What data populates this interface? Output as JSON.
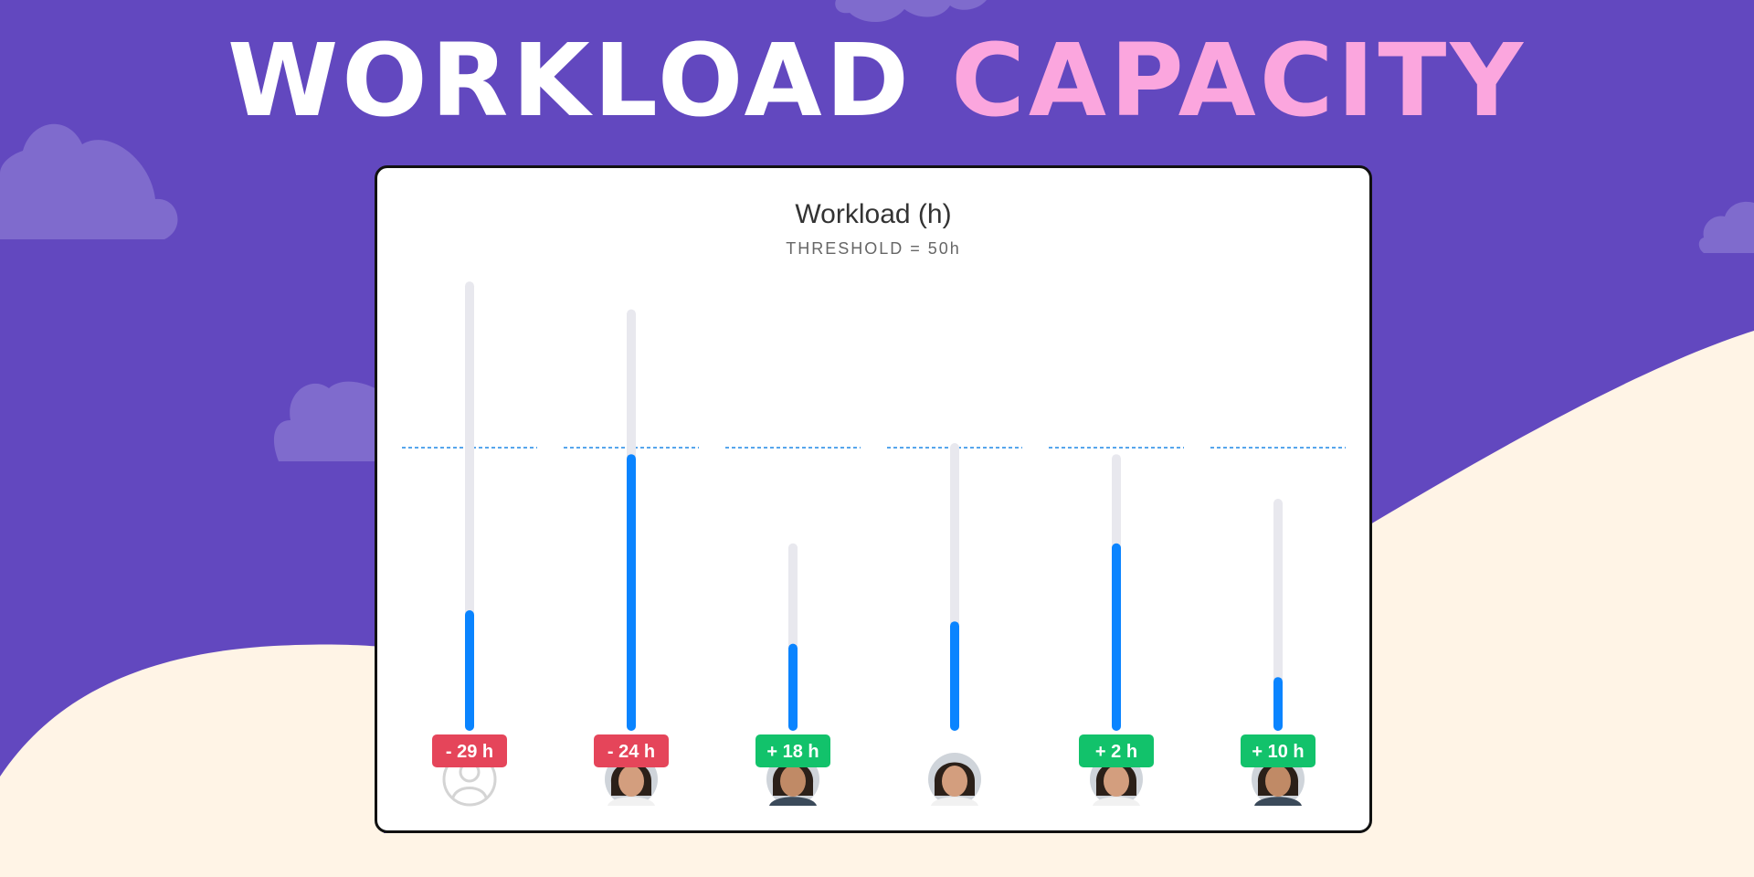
{
  "title": {
    "word1": "WORKLOAD",
    "word2": "CAPACITY"
  },
  "colors": {
    "background": "#6248BF",
    "ground": "#FFF4E6",
    "cloud": "#7F6BCD",
    "title_white": "#FFFFFF",
    "title_pink": "#FBA6DE",
    "bar_fill": "#0A84FF",
    "bar_track": "#E8E8EE",
    "threshold": "#1E88E5",
    "badge_over": "#E5455A",
    "badge_under": "#12C26B"
  },
  "chart_data": {
    "type": "bar",
    "title": "Workload (h)",
    "subtitle": "THRESHOLD = 50h",
    "threshold": 50,
    "unit": "h",
    "ylim": [
      0,
      100
    ],
    "members": [
      {
        "avatar": "placeholder-avatar",
        "capacity": 79,
        "workload": 20,
        "label": "- 29 h",
        "status": "over"
      },
      {
        "avatar": "woman-avatar",
        "capacity": 74,
        "workload": 48,
        "label": "- 24 h",
        "status": "over"
      },
      {
        "avatar": "man-avatar",
        "capacity": 32,
        "workload": 14,
        "label": "+ 18 h",
        "status": "under"
      },
      {
        "avatar": "woman-avatar",
        "capacity": 50,
        "workload": 18,
        "label": "",
        "status": "none"
      },
      {
        "avatar": "woman-avatar",
        "capacity": 48,
        "workload": 32,
        "label": "+ 2 h",
        "status": "under"
      },
      {
        "avatar": "man-avatar",
        "capacity": 40,
        "workload": 8,
        "label": "+ 10 h",
        "status": "under"
      }
    ]
  }
}
